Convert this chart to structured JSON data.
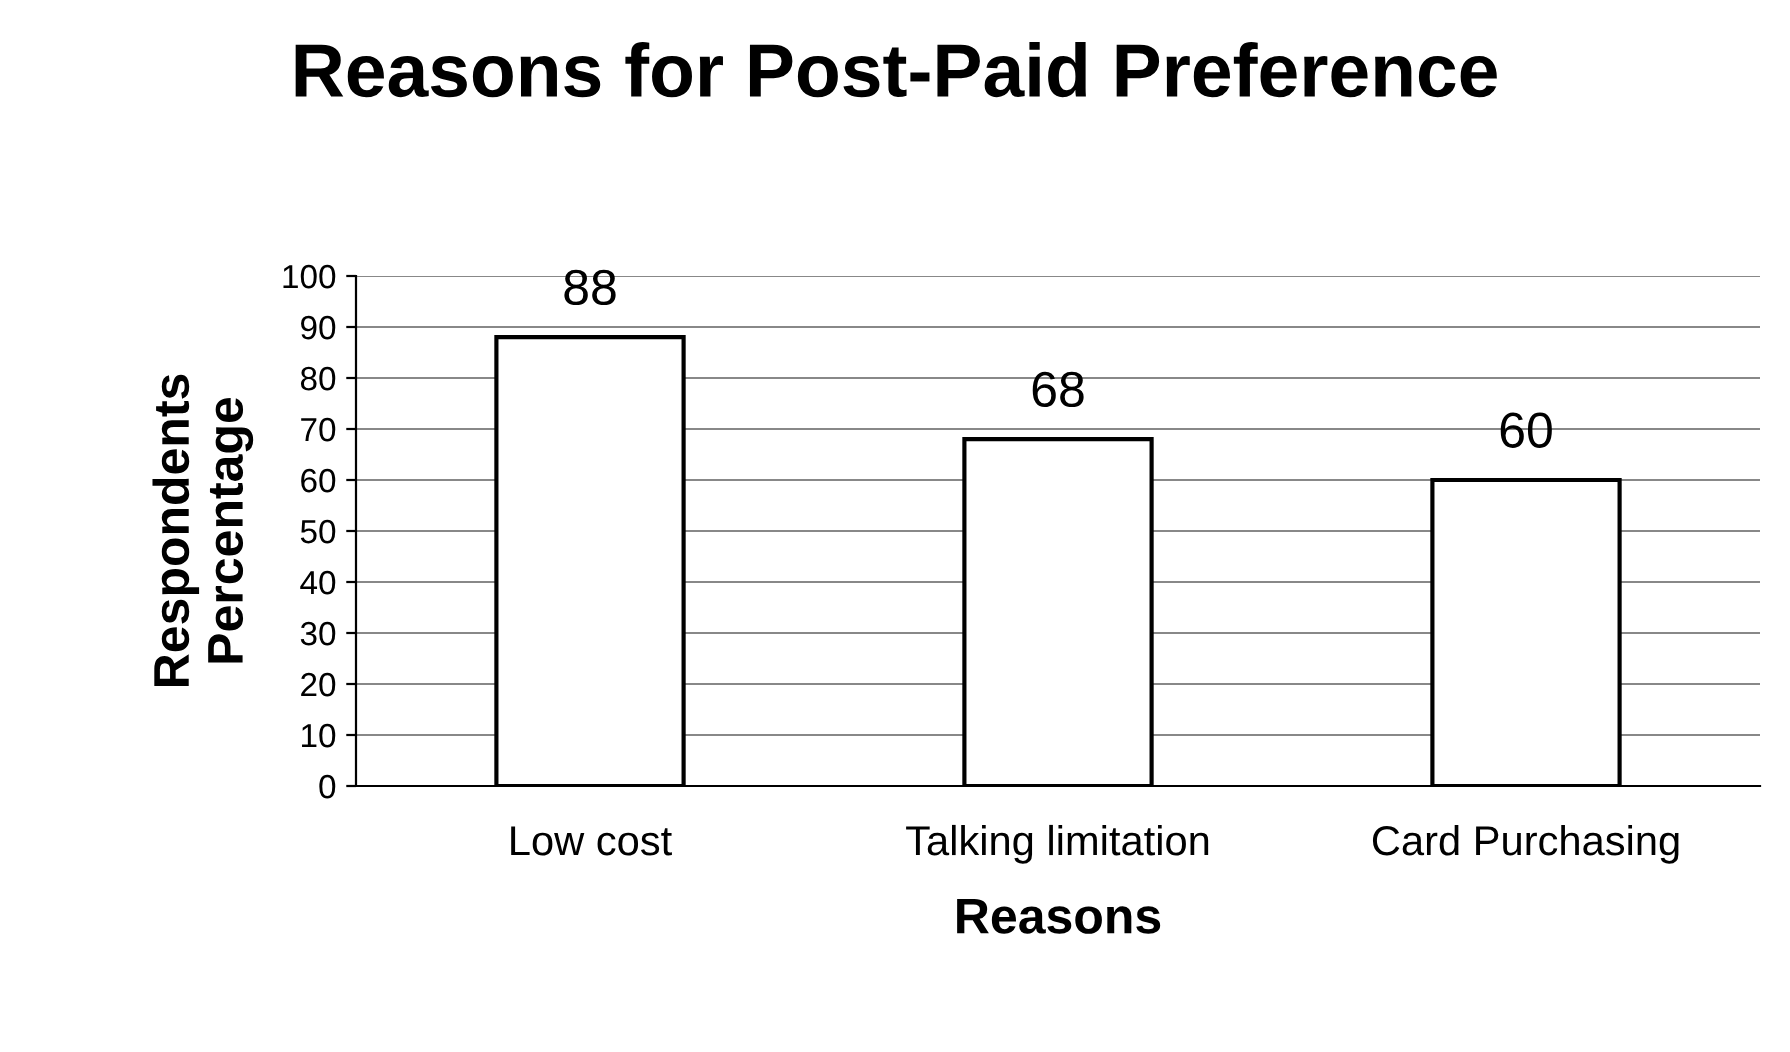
{
  "chart_data": {
    "type": "bar",
    "title": "Reasons for Post-Paid Preference",
    "xlabel": "Reasons",
    "ylabel": "Respondents\nPercentage",
    "categories": [
      "Low cost",
      "Talking limitation",
      "Card Purchasing"
    ],
    "values": [
      88,
      68,
      60
    ],
    "color": "#ffffff",
    "ylim": [
      0,
      100
    ],
    "yticks": [
      0,
      10,
      20,
      30,
      40,
      50,
      60,
      70,
      80,
      90,
      100
    ],
    "grid": "y",
    "data_labels": true
  }
}
